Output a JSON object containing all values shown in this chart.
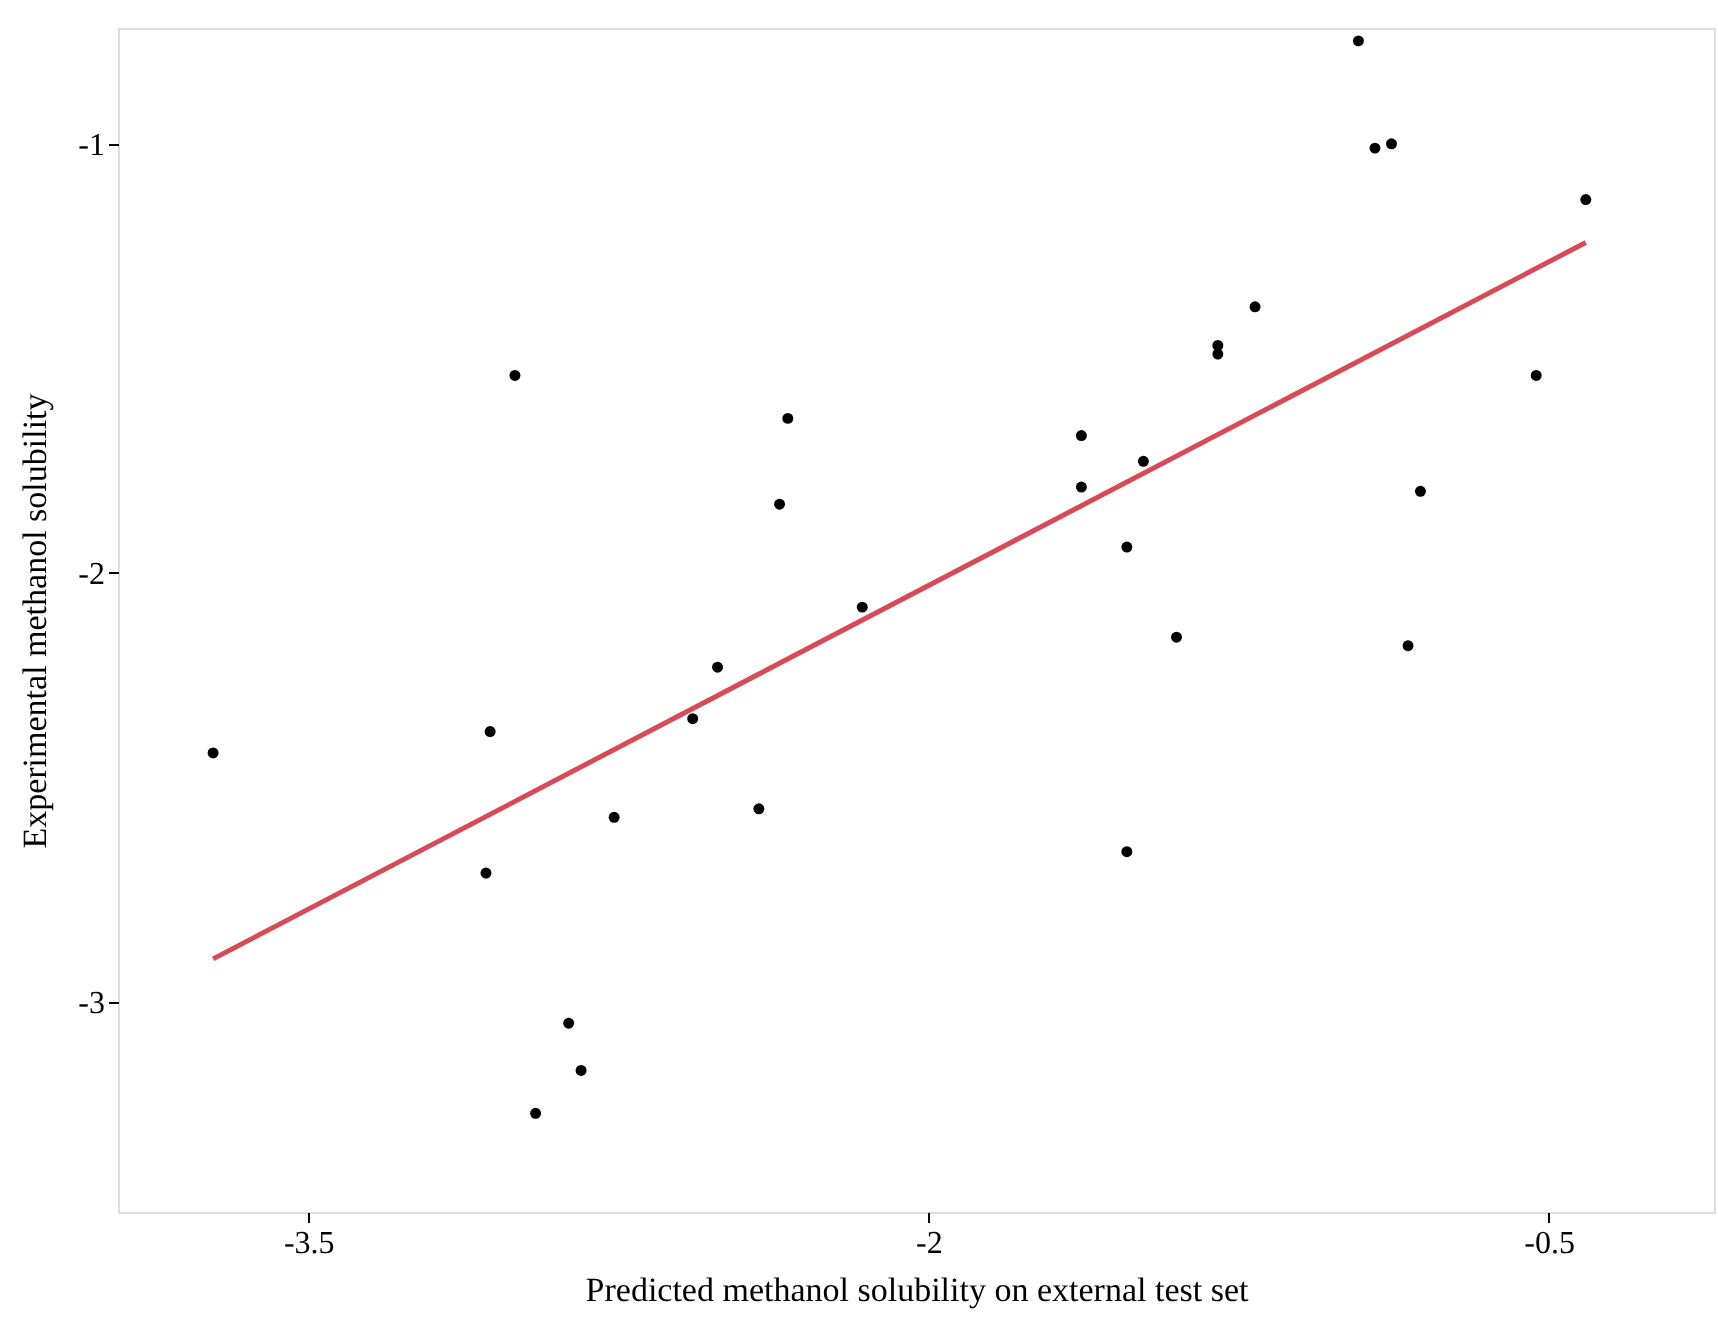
{
  "chart_data": {
    "type": "scatter",
    "xlabel": "Predicted methanol solubility on external test set",
    "ylabel": "Experimental methanol solubility",
    "xlim": [
      -3.96,
      -0.1
    ],
    "ylim": [
      -3.49,
      -0.73
    ],
    "xticks": [
      -3.5,
      -2,
      -0.5
    ],
    "yticks": [
      -1,
      -2,
      -3
    ],
    "grid": false,
    "series": [
      {
        "marker": "circle",
        "color": "#000000",
        "x": [
          -3.73,
          -3.0,
          -3.06,
          -3.07,
          -2.87,
          -2.84,
          -2.95,
          -2.76,
          -2.57,
          -2.51,
          -2.41,
          -2.36,
          -2.34,
          -2.16,
          -1.63,
          -1.63,
          -1.48,
          -1.52,
          -1.4,
          -1.52,
          -1.3,
          -1.3,
          -1.21,
          -0.96,
          -0.92,
          -0.88,
          -0.81,
          -0.84,
          -0.53,
          -0.41
        ],
        "values": [
          -2.42,
          -1.54,
          -2.37,
          -2.7,
          -3.05,
          -3.16,
          -3.26,
          -2.57,
          -2.34,
          -2.22,
          -2.55,
          -1.84,
          -1.64,
          -2.08,
          -1.68,
          -1.8,
          -1.74,
          -1.94,
          -2.15,
          -2.65,
          -1.47,
          -1.49,
          -1.38,
          -0.76,
          -1.01,
          -1.0,
          -1.81,
          -2.17,
          -1.54,
          -1.13
        ]
      },
      {
        "type": "line",
        "color": "#d94a58",
        "x": [
          -3.73,
          -0.41
        ],
        "values": [
          -2.9,
          -1.23
        ]
      }
    ]
  }
}
